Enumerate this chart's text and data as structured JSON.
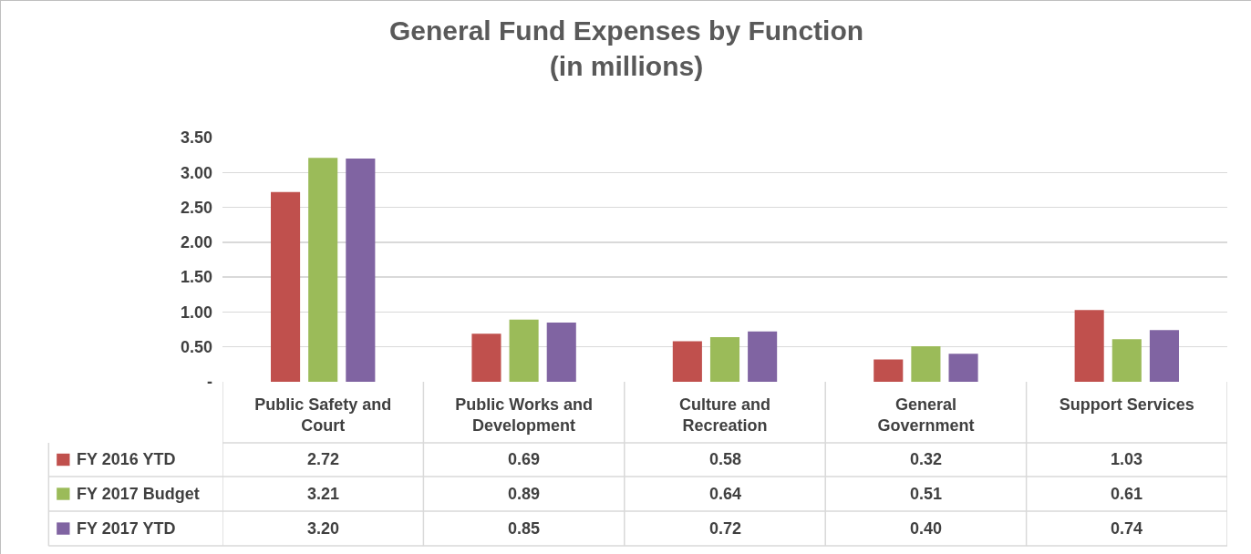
{
  "chart_data": {
    "type": "bar",
    "title": "General Fund Expenses by Function\n(in millions)",
    "categories": [
      "Public Safety and Court",
      "Public Works and Development",
      "Culture and Recreation",
      "General Government",
      "Support Services"
    ],
    "series": [
      {
        "name": "FY 2016 YTD",
        "color": "#c0504d",
        "values": [
          2.72,
          0.69,
          0.58,
          0.32,
          1.03
        ],
        "value_labels": [
          "2.72",
          "0.69",
          "0.58",
          "0.32",
          "1.03"
        ]
      },
      {
        "name": "FY 2017 Budget",
        "color": "#9bbb59",
        "values": [
          3.21,
          0.89,
          0.64,
          0.51,
          0.61
        ],
        "value_labels": [
          "3.21",
          "0.89",
          "0.64",
          "0.51",
          "0.61"
        ]
      },
      {
        "name": "FY 2017 YTD",
        "color": "#8064a2",
        "values": [
          3.2,
          0.85,
          0.72,
          0.4,
          0.74
        ],
        "value_labels": [
          "3.20",
          "0.85",
          "0.72",
          "0.40",
          "0.74"
        ]
      }
    ],
    "ylim": [
      0,
      3.5
    ],
    "yticks": [
      {
        "value": 0,
        "label": "-"
      },
      {
        "value": 0.5,
        "label": "0.50"
      },
      {
        "value": 1,
        "label": "1.00"
      },
      {
        "value": 1.5,
        "label": "1.50"
      },
      {
        "value": 2,
        "label": "2.00"
      },
      {
        "value": 2.5,
        "label": "2.50"
      },
      {
        "value": 3,
        "label": "3.00"
      },
      {
        "value": 3.5,
        "label": "3.50"
      }
    ],
    "grid": "y",
    "legend": "bottom left"
  }
}
